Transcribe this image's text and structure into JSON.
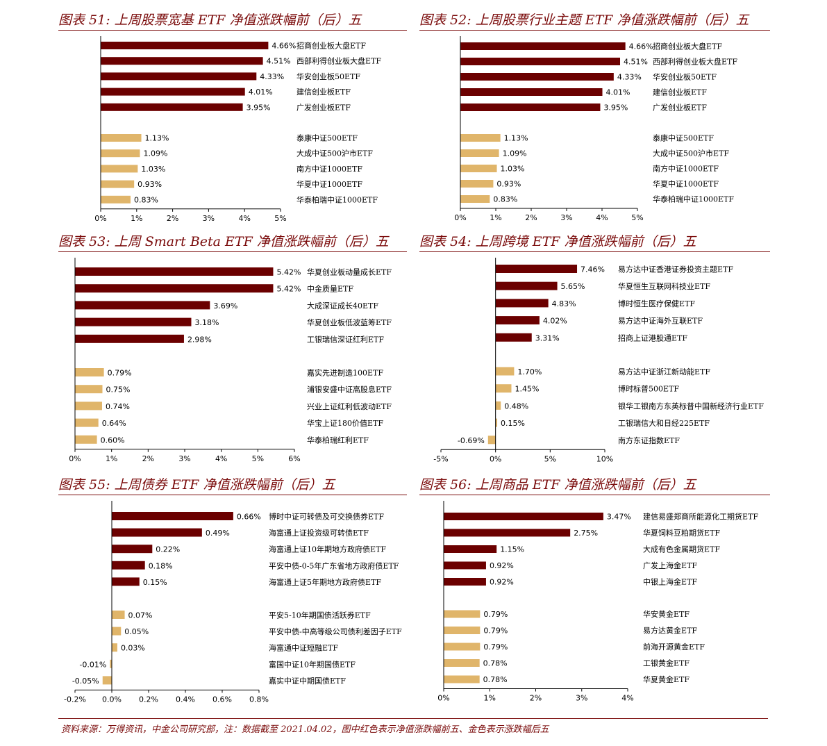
{
  "colors": {
    "top": "#6b0000",
    "bottom": "#e0b56a",
    "title": "#7a0a0a",
    "axis": "#000000"
  },
  "panels": [
    {
      "title": "图表 51:  上周股票宽基 ETF 净值涨跌幅前（后）五",
      "chart_data": {
        "type": "bar",
        "orientation": "horizontal",
        "xlim": [
          0,
          5
        ],
        "ticks": [
          0,
          1,
          2,
          3,
          4,
          5
        ],
        "tick_labels": [
          "0%",
          "1%",
          "2%",
          "3%",
          "4%",
          "5%"
        ],
        "top": [
          {
            "name": "招商创业板大盘ETF",
            "value": 4.66,
            "label": "4.66%"
          },
          {
            "name": "西部利得创业板大盘ETF",
            "value": 4.51,
            "label": "4.51%"
          },
          {
            "name": "华安创业板50ETF",
            "value": 4.33,
            "label": "4.33%"
          },
          {
            "name": "建信创业板ETF",
            "value": 4.01,
            "label": "4.01%"
          },
          {
            "name": "广发创业板ETF",
            "value": 3.95,
            "label": "3.95%"
          }
        ],
        "bottom": [
          {
            "name": "泰康中证500ETF",
            "value": 1.13,
            "label": "1.13%"
          },
          {
            "name": "大成中证500沪市ETF",
            "value": 1.09,
            "label": "1.09%"
          },
          {
            "name": "南方中证1000ETF",
            "value": 1.03,
            "label": "1.03%"
          },
          {
            "name": "华夏中证1000ETF",
            "value": 0.93,
            "label": "0.93%"
          },
          {
            "name": "华泰柏瑞中证1000ETF",
            "value": 0.83,
            "label": "0.83%"
          }
        ]
      }
    },
    {
      "title": "图表 52:  上周股票行业主题 ETF 净值涨跌幅前（后）五",
      "chart_data": {
        "type": "bar",
        "orientation": "horizontal",
        "xlim": [
          0,
          5
        ],
        "ticks": [
          0,
          1,
          2,
          3,
          4,
          5
        ],
        "tick_labels": [
          "0%",
          "1%",
          "2%",
          "3%",
          "4%",
          "5%"
        ],
        "top": [
          {
            "name": "招商创业板大盘ETF",
            "value": 4.66,
            "label": "4.66%"
          },
          {
            "name": "西部利得创业板大盘ETF",
            "value": 4.51,
            "label": "4.51%"
          },
          {
            "name": "华安创业板50ETF",
            "value": 4.33,
            "label": "4.33%"
          },
          {
            "name": "建信创业板ETF",
            "value": 4.01,
            "label": "4.01%"
          },
          {
            "name": "广发创业板ETF",
            "value": 3.95,
            "label": "3.95%"
          }
        ],
        "bottom": [
          {
            "name": "泰康中证500ETF",
            "value": 1.13,
            "label": "1.13%"
          },
          {
            "name": "大成中证500沪市ETF",
            "value": 1.09,
            "label": "1.09%"
          },
          {
            "name": "南方中证1000ETF",
            "value": 1.03,
            "label": "1.03%"
          },
          {
            "name": "华夏中证1000ETF",
            "value": 0.93,
            "label": "0.93%"
          },
          {
            "name": "华泰柏瑞中证1000ETF",
            "value": 0.83,
            "label": "0.83%"
          }
        ]
      }
    },
    {
      "title": "图表 53:  上周 Smart Beta ETF 净值涨跌幅前（后）五",
      "chart_data": {
        "type": "bar",
        "orientation": "horizontal",
        "xlim": [
          0,
          6
        ],
        "ticks": [
          0,
          1,
          2,
          3,
          4,
          5,
          6
        ],
        "tick_labels": [
          "0%",
          "1%",
          "2%",
          "3%",
          "4%",
          "5%",
          "6%"
        ],
        "top": [
          {
            "name": "华夏创业板动量成长ETF",
            "value": 5.42,
            "label": "5.42%"
          },
          {
            "name": "中金质量ETF",
            "value": 5.42,
            "label": "5.42%"
          },
          {
            "name": "大成深证成长40ETF",
            "value": 3.69,
            "label": "3.69%"
          },
          {
            "name": "华夏创业板低波蓝筹ETF",
            "value": 3.18,
            "label": "3.18%"
          },
          {
            "name": "工银瑞信深证红利ETF",
            "value": 2.98,
            "label": "2.98%"
          }
        ],
        "bottom": [
          {
            "name": "嘉实先进制造100ETF",
            "value": 0.79,
            "label": "0.79%"
          },
          {
            "name": "浦银安盛中证高股息ETF",
            "value": 0.75,
            "label": "0.75%"
          },
          {
            "name": "兴业上证红利低波动ETF",
            "value": 0.74,
            "label": "0.74%"
          },
          {
            "name": "华宝上证180价值ETF",
            "value": 0.64,
            "label": "0.64%"
          },
          {
            "name": "华泰柏瑞红利ETF",
            "value": 0.6,
            "label": "0.60%"
          }
        ]
      }
    },
    {
      "title": "图表 54:  上周跨境 ETF 净值涨跌幅前（后）五",
      "chart_data": {
        "type": "bar",
        "orientation": "horizontal",
        "xlim": [
          -5,
          10
        ],
        "ticks": [
          -5,
          0,
          5,
          10
        ],
        "tick_labels": [
          "-5%",
          "0%",
          "5%",
          "10%"
        ],
        "top": [
          {
            "name": "易方达中证香港证券投资主题ETF",
            "value": 7.46,
            "label": "7.46%"
          },
          {
            "name": "华夏恒生互联网科技业ETF",
            "value": 5.65,
            "label": "5.65%"
          },
          {
            "name": "博时恒生医疗保健ETF",
            "value": 4.83,
            "label": "4.83%"
          },
          {
            "name": "易方达中证海外互联ETF",
            "value": 4.02,
            "label": "4.02%"
          },
          {
            "name": "招商上证港股通ETF",
            "value": 3.31,
            "label": "3.31%"
          }
        ],
        "bottom": [
          {
            "name": "易方达中证浙江新动能ETF",
            "value": 1.7,
            "label": "1.70%"
          },
          {
            "name": "博时标普500ETF",
            "value": 1.45,
            "label": "1.45%"
          },
          {
            "name": "银华工银南方东英标普中国新经济行业ETF",
            "value": 0.48,
            "label": "0.48%"
          },
          {
            "name": "工银瑞信大和日经225ETF",
            "value": 0.15,
            "label": "0.15%"
          },
          {
            "name": "南方东证指数ETF",
            "value": -0.69,
            "label": "-0.69%"
          }
        ]
      }
    },
    {
      "title": "图表 55:  上周债券 ETF 净值涨跌幅前（后）五",
      "chart_data": {
        "type": "bar",
        "orientation": "horizontal",
        "xlim": [
          -0.2,
          0.8
        ],
        "ticks": [
          -0.2,
          0,
          0.2,
          0.4,
          0.6,
          0.8
        ],
        "tick_labels": [
          "-0.2%",
          "0.0%",
          "0.2%",
          "0.4%",
          "0.6%",
          "0.8%"
        ],
        "top": [
          {
            "name": "博时中证可转债及可交换债券ETF",
            "value": 0.66,
            "label": "0.66%"
          },
          {
            "name": "海富通上证投资级可转债ETF",
            "value": 0.49,
            "label": "0.49%"
          },
          {
            "name": "海富通上证10年期地方政府债ETF",
            "value": 0.22,
            "label": "0.22%"
          },
          {
            "name": "平安中债-0-5年广东省地方政府债ETF",
            "value": 0.18,
            "label": "0.18%"
          },
          {
            "name": "海富通上证5年期地方政府债ETF",
            "value": 0.15,
            "label": "0.15%"
          }
        ],
        "bottom": [
          {
            "name": "平安5-10年期国债活跃券ETF",
            "value": 0.07,
            "label": "0.07%"
          },
          {
            "name": "平安中债-中高等级公司债利差因子ETF",
            "value": 0.05,
            "label": "0.05%"
          },
          {
            "name": "海富通中证短融ETF",
            "value": 0.03,
            "label": "0.03%"
          },
          {
            "name": "富国中证10年期国债ETF",
            "value": -0.01,
            "label": "-0.01%"
          },
          {
            "name": "嘉实中证中期国债ETF",
            "value": -0.05,
            "label": "-0.05%"
          }
        ]
      }
    },
    {
      "title": "图表 56:  上周商品 ETF 净值涨跌幅前（后）五",
      "chart_data": {
        "type": "bar",
        "orientation": "horizontal",
        "xlim": [
          0,
          4
        ],
        "ticks": [
          0,
          1,
          2,
          3,
          4
        ],
        "tick_labels": [
          "0%",
          "1%",
          "2%",
          "3%",
          "4%"
        ],
        "top": [
          {
            "name": "建信易盛郑商所能源化工期货ETF",
            "value": 3.47,
            "label": "3.47%"
          },
          {
            "name": "华夏饲料豆粕期货ETF",
            "value": 2.75,
            "label": "2.75%"
          },
          {
            "name": "大成有色金属期货ETF",
            "value": 1.15,
            "label": "1.15%"
          },
          {
            "name": "广发上海金ETF",
            "value": 0.92,
            "label": "0.92%"
          },
          {
            "name": "中银上海金ETF",
            "value": 0.92,
            "label": "0.92%"
          }
        ],
        "bottom": [
          {
            "name": "华安黄金ETF",
            "value": 0.79,
            "label": "0.79%"
          },
          {
            "name": "易方达黄金ETF",
            "value": 0.79,
            "label": "0.79%"
          },
          {
            "name": "前海开源黄金ETF",
            "value": 0.79,
            "label": "0.79%"
          },
          {
            "name": "工银黄金ETF",
            "value": 0.78,
            "label": "0.78%"
          },
          {
            "name": "华夏黄金ETF",
            "value": 0.78,
            "label": "0.78%"
          }
        ]
      }
    }
  ],
  "footer": "资料来源：万得资讯，中金公司研究部，注：数据截至 2021.04.02，图中红色表示净值涨跌幅前五、金色表示涨跌幅后五"
}
